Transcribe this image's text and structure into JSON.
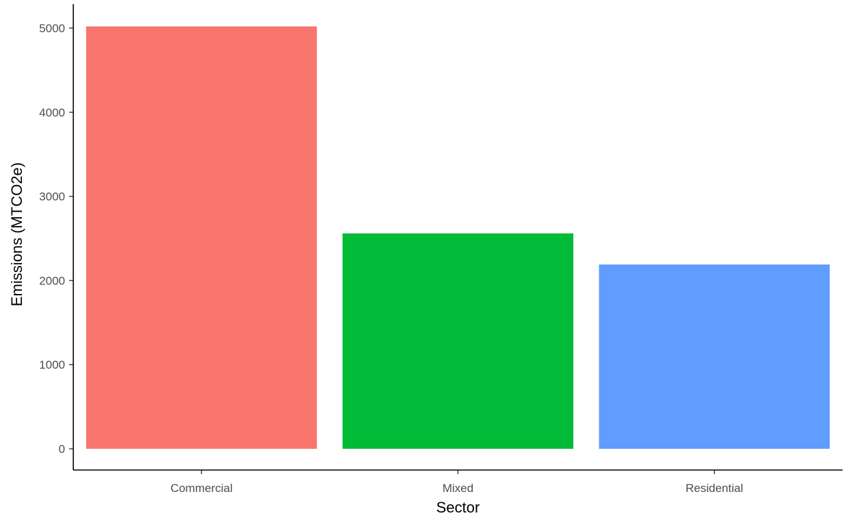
{
  "chart_data": {
    "type": "bar",
    "title": "",
    "xlabel": "Sector",
    "ylabel": "Emissions (MTCO2e)",
    "categories": [
      "Commercial",
      "Mixed",
      "Residential"
    ],
    "values": [
      5020,
      2560,
      2190
    ],
    "colors": [
      "#F8766D",
      "#00BA38",
      "#619CFF"
    ],
    "ylim": [
      0,
      5300
    ],
    "yticks": [
      0,
      1000,
      2000,
      3000,
      4000,
      5000
    ],
    "grid": false,
    "legend": "none"
  }
}
